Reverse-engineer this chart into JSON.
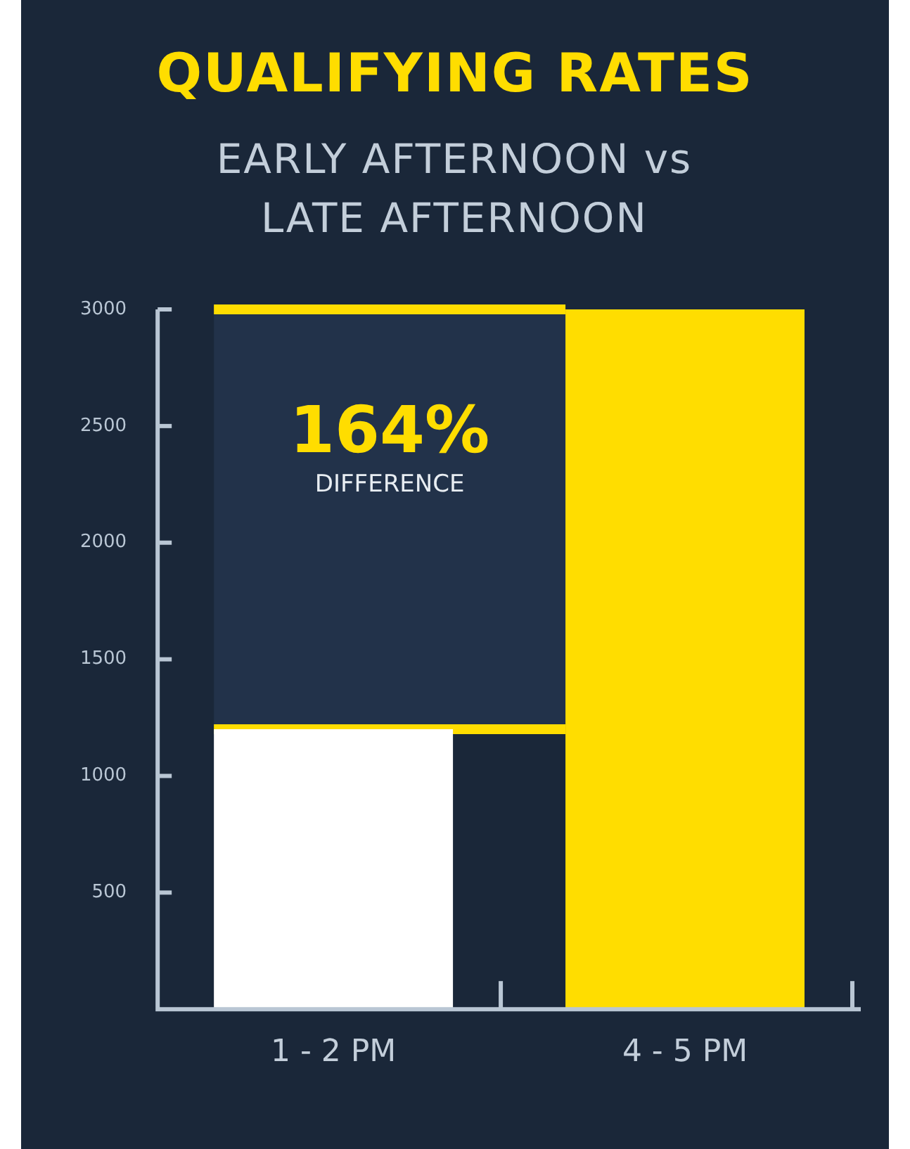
{
  "chart_data": {
    "type": "bar",
    "title": "QUALIFYING RATES",
    "subtitle": "EARLY AFTERNOON vs LATE AFTERNOON",
    "categories": [
      "1 - 2 PM",
      "4 - 5 PM"
    ],
    "values": [
      1200,
      3000
    ],
    "colors": [
      "#ffffff",
      "#ffdd00"
    ],
    "ylim": [
      0,
      3000
    ],
    "yticks": [
      500,
      1000,
      1500,
      2000,
      2500,
      3000
    ],
    "grid": false,
    "legend": false,
    "bands": [
      {
        "axis": "y",
        "from": 1200,
        "to": 3000,
        "color": "#22324a"
      }
    ],
    "ref_lines": [
      {
        "axis": "y",
        "value": 3000,
        "color": "#ffdd00"
      },
      {
        "axis": "y",
        "value": 1200,
        "color": "#ffdd00"
      }
    ],
    "annotations": [
      "164%",
      "DIFFERENCE"
    ]
  }
}
